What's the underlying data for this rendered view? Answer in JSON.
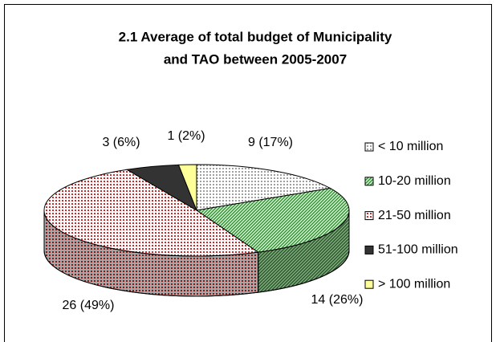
{
  "chart_data": {
    "type": "pie",
    "title": [
      "2.1  Average of total budget of Municipality",
      "and TAO between 2005-2007"
    ],
    "categories": [
      "< 10 million",
      "10-20 million",
      "21-50 million",
      "51-100 million",
      "> 100 million"
    ],
    "values": [
      9,
      14,
      26,
      3,
      1
    ],
    "value_labels": [
      "9 (17%)",
      "14 (26%)",
      "26 (49%)",
      "3 (6%)",
      "1 (2%)"
    ],
    "colors": [
      "#a0a0a0",
      "#2e9a2e",
      "#e02020",
      "#333333",
      "#ffff99"
    ],
    "legend": "right"
  }
}
